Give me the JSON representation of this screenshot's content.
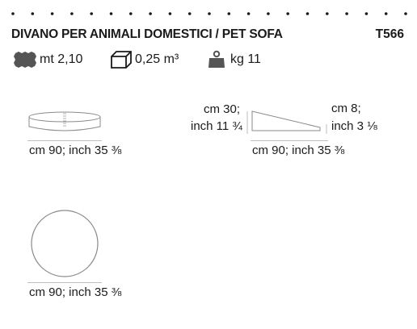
{
  "header": {
    "title": "DIVANO PER ANIMALI DOMESTICI / PET SOFA",
    "code": "T566"
  },
  "specs": {
    "fabric": {
      "icon": "fabric-swatch-icon",
      "value": "mt 2,10"
    },
    "volume": {
      "icon": "cube-icon",
      "value": "0,25 m³"
    },
    "weight": {
      "icon": "weight-icon",
      "value": "kg 11"
    }
  },
  "front_view": {
    "width_label": "cm 90; inch 35 ⅜"
  },
  "side_view": {
    "back_height_cm": "cm 30;",
    "back_height_inch": "inch 11 ¾",
    "seat_height_cm": "cm 8;",
    "seat_height_inch": "inch 3 ⅛",
    "depth_label": "cm 90; inch 35 ⅜"
  },
  "top_view": {
    "diameter_label": "cm 90; inch 35 ⅜"
  }
}
